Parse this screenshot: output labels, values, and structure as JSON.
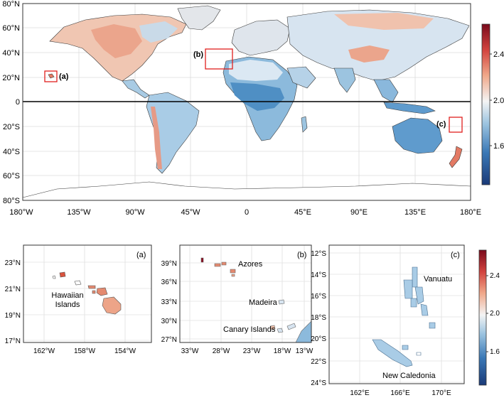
{
  "main_map": {
    "lat_labels": [
      "80°N",
      "60°N",
      "40°N",
      "20°N",
      "0",
      "20°S",
      "40°S",
      "60°S",
      "80°S"
    ],
    "lon_labels": [
      "180°W",
      "135°W",
      "90°W",
      "45°W",
      "0",
      "45°E",
      "90°E",
      "135°E",
      "180°E"
    ],
    "box_labels": {
      "a": "(a)",
      "b": "(b)",
      "c": "(c)"
    }
  },
  "colorbar": {
    "ticks": [
      "2.4",
      "2.0",
      "1.6"
    ],
    "range": [
      1.2,
      2.6
    ],
    "colors": {
      "low": "#1f3e7a",
      "mid": "#f2f2f2",
      "high": "#8b0a1e"
    }
  },
  "panel_a": {
    "tag": "(a)",
    "lat_labels": [
      "23°N",
      "21°N",
      "19°N",
      "17°N"
    ],
    "lon_labels": [
      "162°W",
      "158°W",
      "154°W"
    ],
    "place_label_1": "Hawaiian",
    "place_label_2": "Islands"
  },
  "panel_b": {
    "tag": "(b)",
    "lat_labels": [
      "39°N",
      "36°N",
      "33°N",
      "30°N",
      "27°N"
    ],
    "lon_labels": [
      "33°W",
      "28°W",
      "23°W",
      "18°W",
      "13°W"
    ],
    "label_azores": "Azores",
    "label_madeira": "Madeira",
    "label_canary": "Canary Islands"
  },
  "panel_c": {
    "tag": "(c)",
    "lat_labels": [
      "12°S",
      "14°S",
      "16°S",
      "18°S",
      "20°S",
      "22°S",
      "24°S"
    ],
    "lon_labels": [
      "162°E",
      "166°E",
      "170°E"
    ],
    "label_vanuatu": "Vanuatu",
    "label_newcal": "New Caledonia"
  },
  "small_colorbar": {
    "ticks": [
      "2.4",
      "2.0",
      "1.6"
    ]
  },
  "colors": {
    "frame": "#333333",
    "grid": "#d8d8d8",
    "highlight_box": "#e0201e",
    "ocean": "#ffffff",
    "land_warm": "#f2b89a",
    "land_warm_strong": "#e0826a",
    "land_neutral": "#e6e9ee",
    "land_cool": "#9cc4e0",
    "land_cool_strong": "#4f8fc4"
  }
}
